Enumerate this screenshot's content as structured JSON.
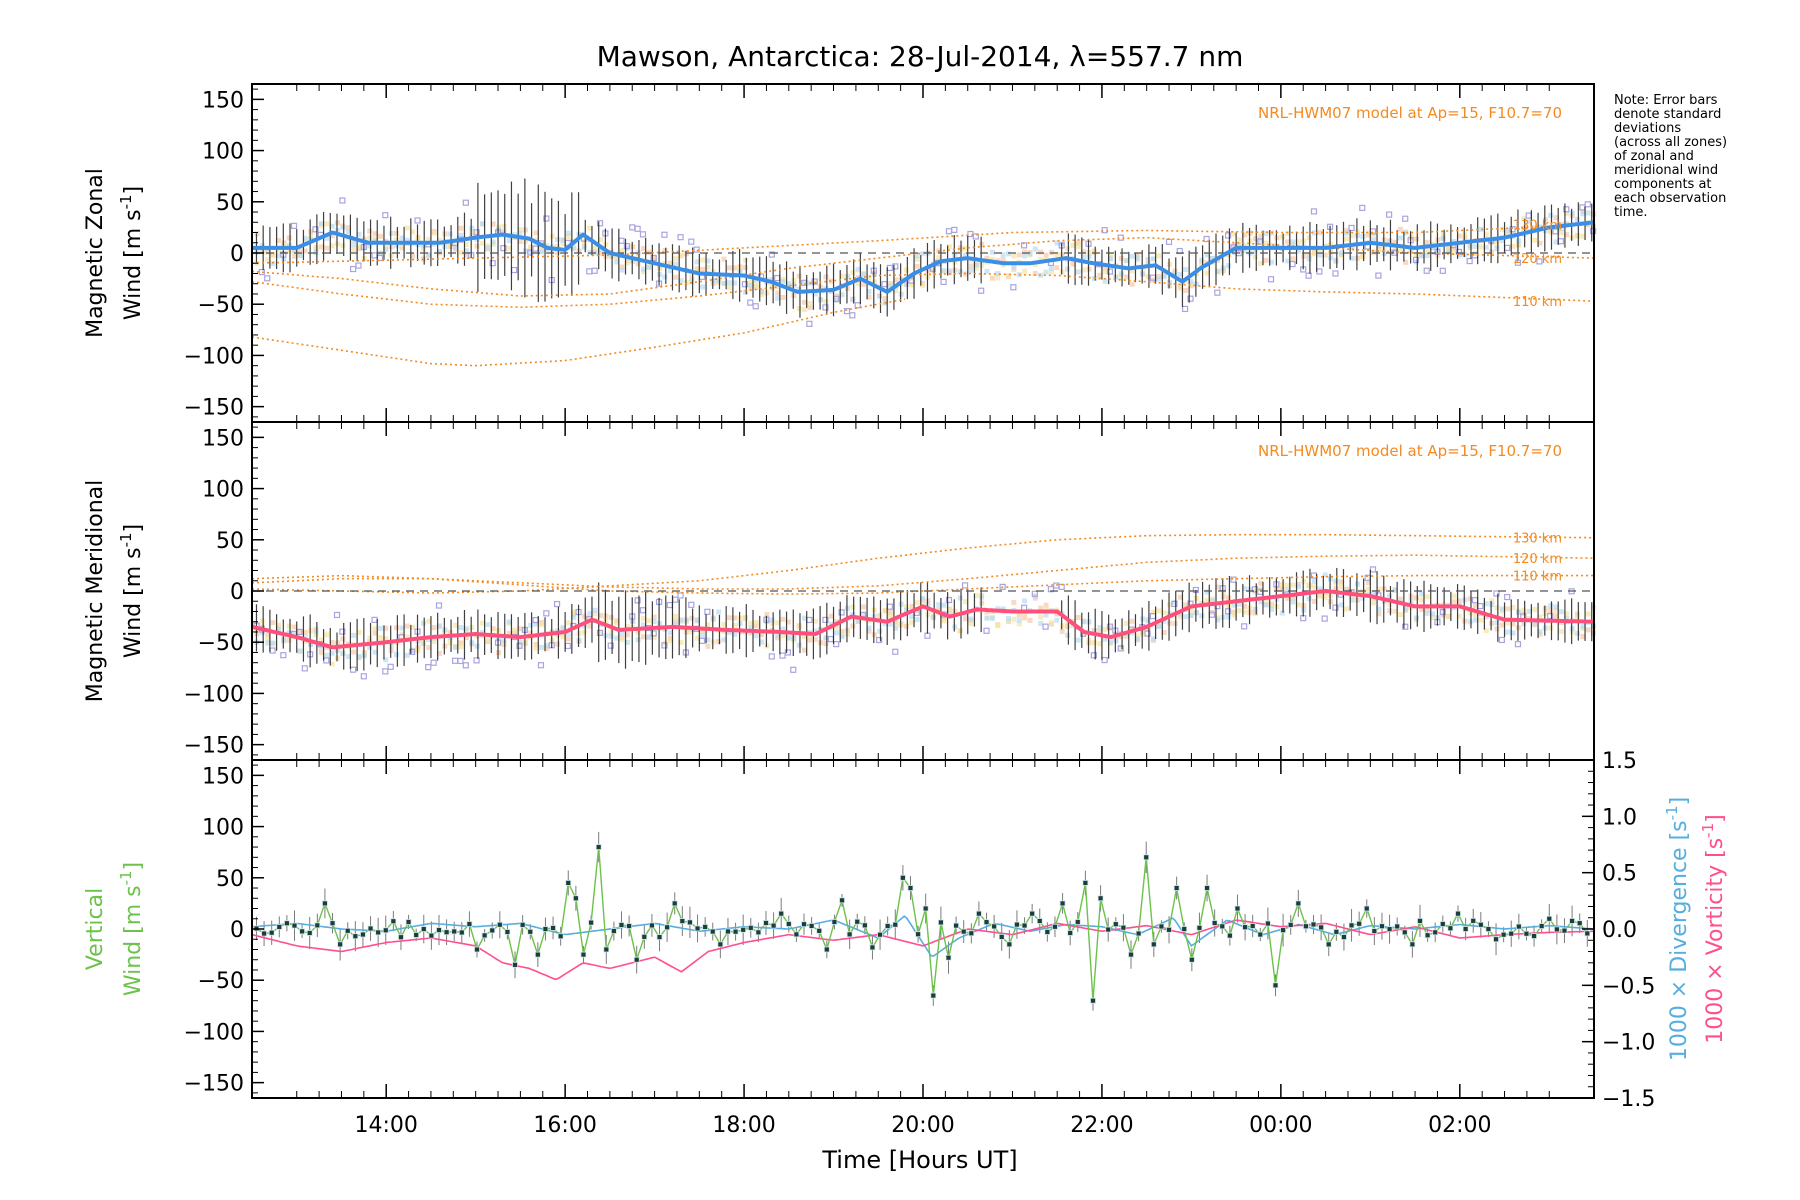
{
  "title": "Mawson, Antarctica: 28-Jul-2014, λ=557.7 nm",
  "note_lines": [
    "Note: Error bars",
    "denote standard",
    "deviations",
    "(across all zones)",
    "of zonal and",
    "meridional wind",
    "components at",
    "each observation",
    "time."
  ],
  "model_label": "NRL-HWM07 model at Ap=15, F10.7=70",
  "x_axis": {
    "title": "Time [Hours UT]",
    "range_hours": [
      12.5,
      27.5
    ],
    "tick_labels": [
      "14:00",
      "16:00",
      "18:00",
      "20:00",
      "22:00",
      "00:00",
      "02:00"
    ],
    "tick_hours": [
      14,
      16,
      18,
      20,
      22,
      24,
      26
    ]
  },
  "colors": {
    "zonal_line": "#3a8ee6",
    "meridional_line": "#ff4f7b",
    "vertical_line": "#6cc24a",
    "divergence_line": "#56aee0",
    "vorticity_line": "#ff4f8e",
    "model": "#f58a1f",
    "errorbar": "#111111",
    "zone_points": "#a8a4e0"
  },
  "chart_data": [
    {
      "type": "line",
      "panel": "zonal",
      "ylabel_line1": "Magnetic Zonal",
      "ylabel_line2": "Wind [m s",
      "ylabel_sup": "-1",
      "ylabel_close": "]",
      "ylim": [
        -165,
        165
      ],
      "yticks": [
        150,
        100,
        50,
        0,
        -50,
        -100,
        -150
      ],
      "ytick_labels": [
        "150",
        "100",
        "50",
        "0",
        "−50",
        "−100",
        "−150"
      ],
      "series_knots": [
        [
          12.5,
          5
        ],
        [
          13.0,
          5
        ],
        [
          13.4,
          20
        ],
        [
          13.8,
          10
        ],
        [
          14.6,
          10
        ],
        [
          15.0,
          15
        ],
        [
          15.3,
          18
        ],
        [
          15.6,
          14
        ],
        [
          15.8,
          5
        ],
        [
          16.0,
          3
        ],
        [
          16.2,
          18
        ],
        [
          16.5,
          0
        ],
        [
          17.0,
          -10
        ],
        [
          17.5,
          -20
        ],
        [
          18.0,
          -22
        ],
        [
          18.3,
          -28
        ],
        [
          18.6,
          -38
        ],
        [
          19.0,
          -36
        ],
        [
          19.3,
          -25
        ],
        [
          19.6,
          -38
        ],
        [
          19.9,
          -20
        ],
        [
          20.2,
          -8
        ],
        [
          20.5,
          -5
        ],
        [
          20.9,
          -10
        ],
        [
          21.2,
          -10
        ],
        [
          21.6,
          -5
        ],
        [
          21.9,
          -10
        ],
        [
          22.3,
          -15
        ],
        [
          22.6,
          -12
        ],
        [
          22.9,
          -28
        ],
        [
          23.1,
          -15
        ],
        [
          23.5,
          5
        ],
        [
          24.0,
          5
        ],
        [
          24.5,
          5
        ],
        [
          25.0,
          10
        ],
        [
          25.5,
          5
        ],
        [
          26.0,
          10
        ],
        [
          26.5,
          15
        ],
        [
          27.0,
          25
        ],
        [
          27.5,
          30
        ]
      ],
      "model_knots": {
        "130_km": [
          [
            12.5,
            -10
          ],
          [
            13.5,
            -8
          ],
          [
            15.0,
            -5
          ],
          [
            16.5,
            -2
          ],
          [
            18.0,
            5
          ],
          [
            19.5,
            12
          ],
          [
            21.0,
            20
          ],
          [
            22.5,
            22
          ],
          [
            24.0,
            20
          ],
          [
            25.5,
            20
          ],
          [
            27.5,
            28
          ]
        ],
        "120_km": [
          [
            12.5,
            -18
          ],
          [
            13.5,
            -25
          ],
          [
            14.5,
            -35
          ],
          [
            15.5,
            -42
          ],
          [
            16.5,
            -40
          ],
          [
            17.5,
            -28
          ],
          [
            18.5,
            -15
          ],
          [
            19.5,
            -5
          ],
          [
            20.5,
            5
          ],
          [
            21.5,
            12
          ],
          [
            22.5,
            15
          ],
          [
            23.5,
            10
          ],
          [
            24.5,
            5
          ],
          [
            25.5,
            0
          ],
          [
            27.5,
            -5
          ]
        ],
        "110_km": [
          [
            12.5,
            -28
          ],
          [
            13.5,
            -40
          ],
          [
            14.5,
            -50
          ],
          [
            15.5,
            -53
          ],
          [
            16.5,
            -50
          ],
          [
            17.5,
            -42
          ],
          [
            18.5,
            -32
          ],
          [
            19.5,
            -22
          ],
          [
            20.5,
            -20
          ],
          [
            21.5,
            -22
          ],
          [
            22.5,
            -28
          ],
          [
            23.5,
            -35
          ],
          [
            24.5,
            -38
          ],
          [
            25.5,
            -40
          ],
          [
            27.5,
            -47
          ]
        ],
        "lowest": [
          [
            12.5,
            -82
          ],
          [
            13.5,
            -95
          ],
          [
            14.5,
            -108
          ],
          [
            15.0,
            -110
          ],
          [
            16.0,
            -105
          ],
          [
            17.0,
            -92
          ],
          [
            18.0,
            -78
          ],
          [
            19.0,
            -58
          ],
          [
            19.8,
            -45
          ]
        ]
      },
      "model_tags": [
        "130 km",
        "120 km",
        "110 km"
      ]
    },
    {
      "type": "line",
      "panel": "meridional",
      "ylabel_line1": "Magnetic Meridional",
      "ylabel_line2": "Wind [m s",
      "ylabel_sup": "-1",
      "ylabel_close": "]",
      "ylim": [
        -165,
        165
      ],
      "yticks": [
        150,
        100,
        50,
        0,
        -50,
        -100,
        -150
      ],
      "ytick_labels": [
        "150",
        "100",
        "50",
        "0",
        "−50",
        "−100",
        "−150"
      ],
      "series_knots": [
        [
          12.5,
          -35
        ],
        [
          13.0,
          -45
        ],
        [
          13.4,
          -55
        ],
        [
          14.0,
          -50
        ],
        [
          14.5,
          -45
        ],
        [
          15.0,
          -42
        ],
        [
          15.5,
          -45
        ],
        [
          16.0,
          -40
        ],
        [
          16.3,
          -28
        ],
        [
          16.6,
          -38
        ],
        [
          17.2,
          -35
        ],
        [
          17.8,
          -38
        ],
        [
          18.4,
          -40
        ],
        [
          18.8,
          -42
        ],
        [
          19.2,
          -25
        ],
        [
          19.6,
          -30
        ],
        [
          20.0,
          -15
        ],
        [
          20.3,
          -25
        ],
        [
          20.6,
          -18
        ],
        [
          21.0,
          -20
        ],
        [
          21.5,
          -20
        ],
        [
          21.8,
          -40
        ],
        [
          22.1,
          -45
        ],
        [
          22.5,
          -35
        ],
        [
          23.0,
          -15
        ],
        [
          23.5,
          -10
        ],
        [
          24.0,
          -5
        ],
        [
          24.5,
          0
        ],
        [
          25.0,
          -5
        ],
        [
          25.5,
          -15
        ],
        [
          26.0,
          -15
        ],
        [
          26.5,
          -28
        ],
        [
          27.5,
          -30
        ]
      ],
      "model_knots": {
        "130_km": [
          [
            12.5,
            2
          ],
          [
            13.5,
            0
          ],
          [
            14.5,
            -2
          ],
          [
            15.5,
            0
          ],
          [
            16.5,
            5
          ],
          [
            17.5,
            10
          ],
          [
            18.5,
            20
          ],
          [
            19.5,
            32
          ],
          [
            20.5,
            42
          ],
          [
            21.5,
            50
          ],
          [
            22.5,
            54
          ],
          [
            23.5,
            55
          ],
          [
            24.5,
            55
          ],
          [
            25.5,
            54
          ],
          [
            27.5,
            52
          ]
        ],
        "120_km": [
          [
            12.5,
            8
          ],
          [
            13.5,
            12
          ],
          [
            14.5,
            12
          ],
          [
            15.5,
            8
          ],
          [
            16.5,
            4
          ],
          [
            17.5,
            2
          ],
          [
            18.5,
            2
          ],
          [
            19.5,
            5
          ],
          [
            20.5,
            12
          ],
          [
            21.5,
            20
          ],
          [
            22.5,
            28
          ],
          [
            23.5,
            32
          ],
          [
            24.5,
            34
          ],
          [
            25.5,
            35
          ],
          [
            27.5,
            32
          ]
        ],
        "110_km": [
          [
            12.5,
            12
          ],
          [
            13.5,
            15
          ],
          [
            14.5,
            12
          ],
          [
            15.5,
            6
          ],
          [
            16.5,
            0
          ],
          [
            17.5,
            -2
          ],
          [
            18.5,
            -3
          ],
          [
            19.5,
            -2
          ],
          [
            20.5,
            2
          ],
          [
            21.5,
            6
          ],
          [
            22.5,
            10
          ],
          [
            23.5,
            12
          ],
          [
            24.5,
            14
          ],
          [
            25.5,
            15
          ],
          [
            27.5,
            15
          ]
        ]
      },
      "model_tags": [
        "130 km",
        "120 km",
        "110 km"
      ]
    },
    {
      "type": "line",
      "panel": "vertical",
      "ylabel_line1": "Vertical",
      "ylabel_line2": "Wind [m s",
      "ylabel_sup": "-1",
      "ylabel_close": "]",
      "ylim": [
        -165,
        165
      ],
      "yticks": [
        150,
        100,
        50,
        0,
        -50,
        -100,
        -150
      ],
      "ytick_labels": [
        "150",
        "100",
        "50",
        "0",
        "−50",
        "−100",
        "−150"
      ],
      "right_axis": {
        "ylim": [
          -1.5,
          1.5
        ],
        "ticks": [
          1.5,
          1.0,
          0.5,
          0.0,
          -0.5,
          -1.0,
          -1.5
        ],
        "tick_labels": [
          "1.5",
          "1.0",
          "0.5",
          "0.0",
          "−0.5",
          "−1.0",
          "−1.5"
        ],
        "label_divergence": "1000 × Divergence [s",
        "label_vorticity": "1000 × Vorticity [s",
        "label_sup": "-1",
        "label_close": "]"
      },
      "vertical_spikes": [
        [
          13.3,
          25
        ],
        [
          13.5,
          -15
        ],
        [
          14.2,
          -8
        ],
        [
          15.0,
          -20
        ],
        [
          15.4,
          -35
        ],
        [
          15.7,
          -25
        ],
        [
          16.0,
          45
        ],
        [
          16.1,
          30
        ],
        [
          16.2,
          -25
        ],
        [
          16.4,
          80
        ],
        [
          16.5,
          -20
        ],
        [
          16.8,
          -30
        ],
        [
          17.2,
          25
        ],
        [
          17.7,
          -15
        ],
        [
          18.4,
          15
        ],
        [
          18.9,
          -20
        ],
        [
          19.1,
          28
        ],
        [
          19.4,
          -18
        ],
        [
          19.8,
          50
        ],
        [
          19.9,
          40
        ],
        [
          20.0,
          20
        ],
        [
          20.1,
          -65
        ],
        [
          20.3,
          -28
        ],
        [
          20.6,
          15
        ],
        [
          21.0,
          -15
        ],
        [
          21.2,
          15
        ],
        [
          21.6,
          25
        ],
        [
          21.8,
          45
        ],
        [
          21.9,
          -70
        ],
        [
          22.0,
          30
        ],
        [
          22.3,
          -25
        ],
        [
          22.5,
          70
        ],
        [
          22.6,
          -15
        ],
        [
          22.8,
          40
        ],
        [
          23.0,
          -30
        ],
        [
          23.2,
          40
        ],
        [
          23.5,
          20
        ],
        [
          23.9,
          -55
        ],
        [
          24.2,
          25
        ],
        [
          24.5,
          -15
        ],
        [
          25.0,
          20
        ],
        [
          25.5,
          -15
        ],
        [
          26.0,
          15
        ],
        [
          26.4,
          -10
        ],
        [
          27.0,
          10
        ]
      ],
      "divergence_knots": [
        [
          12.5,
          0.02
        ],
        [
          13.0,
          0.05
        ],
        [
          13.5,
          0.0
        ],
        [
          14.0,
          -0.02
        ],
        [
          14.5,
          0.05
        ],
        [
          15.0,
          0.02
        ],
        [
          15.5,
          0.05
        ],
        [
          16.0,
          -0.05
        ],
        [
          16.5,
          0.0
        ],
        [
          17.0,
          0.05
        ],
        [
          17.5,
          -0.02
        ],
        [
          18.0,
          0.02
        ],
        [
          18.5,
          0.0
        ],
        [
          19.0,
          0.08
        ],
        [
          19.5,
          -0.08
        ],
        [
          19.8,
          0.12
        ],
        [
          20.1,
          -0.25
        ],
        [
          20.4,
          -0.08
        ],
        [
          20.8,
          0.05
        ],
        [
          21.2,
          -0.02
        ],
        [
          21.6,
          0.04
        ],
        [
          22.0,
          0.02
        ],
        [
          22.4,
          -0.05
        ],
        [
          22.8,
          0.1
        ],
        [
          23.0,
          -0.15
        ],
        [
          23.4,
          0.08
        ],
        [
          23.8,
          -0.05
        ],
        [
          24.2,
          0.04
        ],
        [
          24.6,
          -0.05
        ],
        [
          25.0,
          0.03
        ],
        [
          25.5,
          0.0
        ],
        [
          26.0,
          0.04
        ],
        [
          26.5,
          0.0
        ],
        [
          27.0,
          0.03
        ],
        [
          27.5,
          0.0
        ]
      ],
      "vorticity_knots": [
        [
          12.5,
          -0.05
        ],
        [
          13.0,
          -0.15
        ],
        [
          13.5,
          -0.2
        ],
        [
          14.0,
          -0.12
        ],
        [
          14.5,
          -0.08
        ],
        [
          15.0,
          -0.15
        ],
        [
          15.3,
          -0.3
        ],
        [
          15.6,
          -0.35
        ],
        [
          15.9,
          -0.45
        ],
        [
          16.2,
          -0.3
        ],
        [
          16.5,
          -0.35
        ],
        [
          17.0,
          -0.25
        ],
        [
          17.3,
          -0.38
        ],
        [
          17.6,
          -0.2
        ],
        [
          18.0,
          -0.12
        ],
        [
          18.5,
          -0.05
        ],
        [
          19.0,
          -0.1
        ],
        [
          19.5,
          -0.05
        ],
        [
          20.0,
          -0.15
        ],
        [
          20.5,
          0.0
        ],
        [
          21.0,
          -0.05
        ],
        [
          21.5,
          0.05
        ],
        [
          22.0,
          -0.02
        ],
        [
          22.5,
          0.03
        ],
        [
          23.0,
          -0.05
        ],
        [
          23.5,
          0.08
        ],
        [
          24.0,
          0.02
        ],
        [
          24.5,
          0.05
        ],
        [
          25.0,
          -0.05
        ],
        [
          25.5,
          0.02
        ],
        [
          26.0,
          -0.08
        ],
        [
          26.5,
          -0.05
        ],
        [
          27.0,
          -0.03
        ],
        [
          27.5,
          -0.02
        ]
      ]
    }
  ]
}
